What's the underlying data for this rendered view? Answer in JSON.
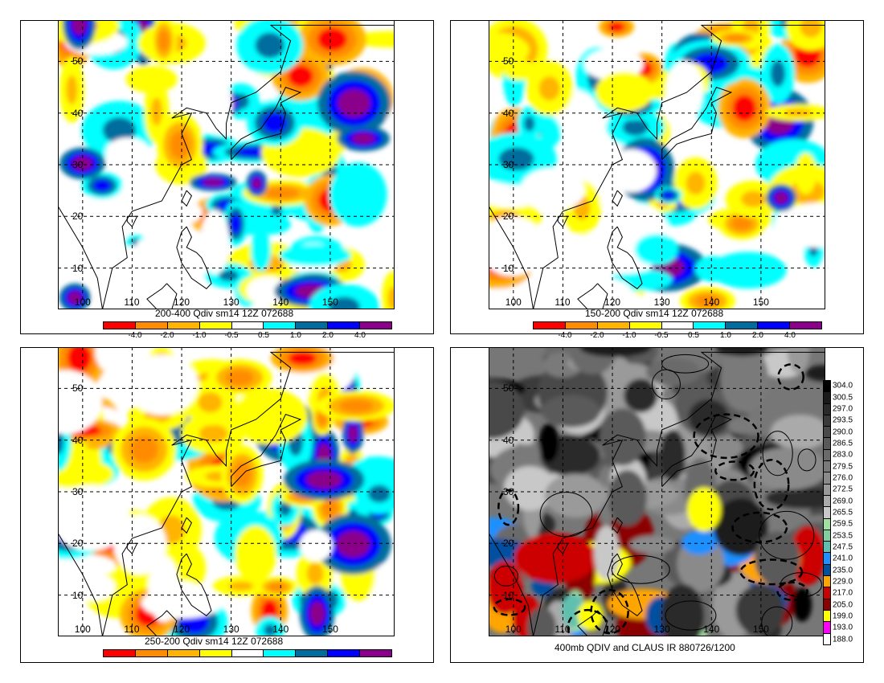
{
  "chart_data": [
    {
      "type": "heatmap",
      "title": "200-400 Qdiv sm14 12Z 072688",
      "x_ticks": [
        "100",
        "110",
        "120",
        "130",
        "140",
        "150"
      ],
      "y_ticks": [
        "50",
        "40",
        "30",
        "20",
        "10"
      ],
      "colorbar": {
        "labels": [
          "-4.0",
          "-2.0",
          "-1.0",
          "-0.5",
          "0.5",
          "1.0",
          "2.0",
          "4.0"
        ],
        "colors": [
          "#ff0000",
          "#ff8c00",
          "#ffb400",
          "#ffff00",
          "#ffffff",
          "#00ffff",
          "#006d9e",
          "#0000ff",
          "#8b008b"
        ]
      },
      "palette_seed": 11
    },
    {
      "type": "heatmap",
      "title": "150-200 Qdiv sm14 12Z 072688",
      "x_ticks": [
        "100",
        "110",
        "120",
        "130",
        "140",
        "150"
      ],
      "y_ticks": [
        "50",
        "40",
        "30",
        "20",
        "10"
      ],
      "colorbar": {
        "labels": [
          "-4.0",
          "-2.0",
          "-1.0",
          "-0.5",
          "0.5",
          "1.0",
          "2.0",
          "4.0"
        ],
        "colors": [
          "#ff0000",
          "#ff8c00",
          "#ffb400",
          "#ffff00",
          "#ffffff",
          "#00ffff",
          "#006d9e",
          "#0000ff",
          "#8b008b"
        ]
      },
      "palette_seed": 23
    },
    {
      "type": "heatmap",
      "title": "250-200 Qdiv sm14 12Z 072688",
      "x_ticks": [
        "100",
        "110",
        "120",
        "130",
        "140",
        "150"
      ],
      "y_ticks": [
        "50",
        "40",
        "30",
        "20",
        "10"
      ],
      "colorbar": {
        "labels": [],
        "colors": [
          "#ff0000",
          "#ff8c00",
          "#ffb400",
          "#ffff00",
          "#ffffff",
          "#00ffff",
          "#006d9e",
          "#0000ff",
          "#8b008b"
        ]
      },
      "palette_seed": 37
    },
    {
      "type": "heatmap",
      "title": "400mb QDIV and CLAUS IR 880726/1200",
      "x_ticks": [
        "100",
        "110",
        "120",
        "130",
        "140",
        "150"
      ],
      "y_ticks": [
        "50",
        "40",
        "30",
        "20",
        "10"
      ],
      "colorbar": {
        "labels": [
          "304.0",
          "300.5",
          "297.0",
          "293.5",
          "290.0",
          "286.5",
          "283.0",
          "279.5",
          "276.0",
          "272.5",
          "269.0",
          "265.5",
          "259.5",
          "253.5",
          "247.5",
          "241.0",
          "235.0",
          "229.0",
          "217.0",
          "205.0",
          "199.0",
          "193.0",
          "188.0"
        ],
        "colors": [
          "#000000",
          "#1a1a1a",
          "#2a2a2a",
          "#3a3a3a",
          "#4a4a4a",
          "#5a5a5a",
          "#6a6a6a",
          "#7a7a7a",
          "#8a8a8a",
          "#9a9a9a",
          "#aaaaaa",
          "#c8c8c8",
          "#a0e0a0",
          "#80d0a0",
          "#60c0b0",
          "#1e90ff",
          "#0050a0",
          "#ffa500",
          "#cc0000",
          "#8b0000",
          "#ffff00",
          "#ff00ff",
          "#ffffff"
        ]
      },
      "palette_seed": 53
    }
  ]
}
